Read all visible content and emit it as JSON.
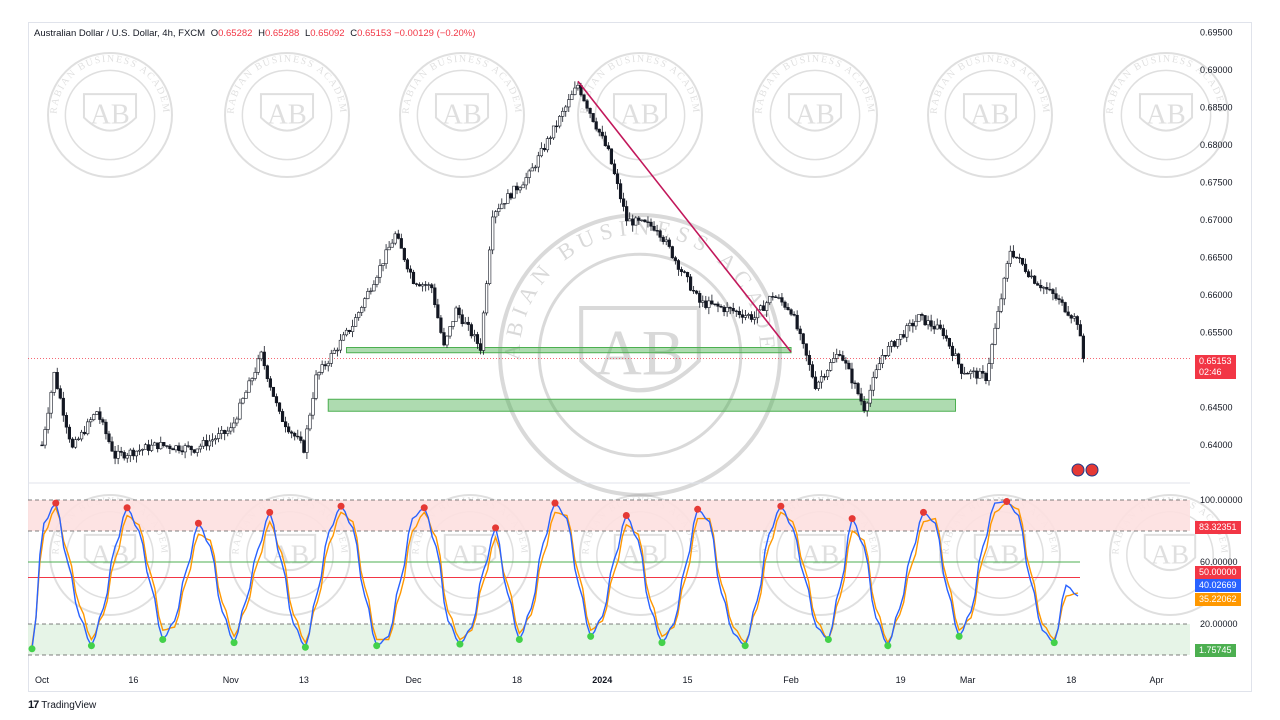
{
  "header": {
    "symbol": "Australian Dollar / U.S. Dollar, 4h, FXCM",
    "open_label": "O",
    "open": "0.65282",
    "high_label": "H",
    "high": "0.65288",
    "low_label": "L",
    "low": "0.65092",
    "close_label": "C",
    "close": "0.65153",
    "change": "−0.00129 (−0.20%)"
  },
  "price_tag": {
    "price": "0.65153",
    "countdown": "02:46",
    "color": "#f23645"
  },
  "osc_tags": [
    {
      "value": "83.32351",
      "color": "#f23645"
    },
    {
      "value": "50.00000",
      "color": "#f23645"
    },
    {
      "value": "40.02669",
      "color": "#2962ff"
    },
    {
      "value": "35.22062",
      "color": "#ff9800"
    },
    {
      "value": "1.75745",
      "color": "#4caf50"
    }
  ],
  "footer": {
    "brand": "TradingView"
  },
  "watermark": {
    "initials": "AB",
    "ring_text": "ARABIAN BUSINESS ACADEMY"
  },
  "colors": {
    "up": "#26a69a",
    "down": "#ef5350",
    "candle": "#131722",
    "trendline": "#c2185b",
    "zone": "#4caf50",
    "k_line": "#2962ff",
    "d_line": "#ff9800"
  },
  "chart_data": [
    {
      "type": "candlestick",
      "title": "Australian Dollar / U.S. Dollar, 4h, FXCM",
      "y_ticks": [
        "0.69500",
        "0.69000",
        "0.68500",
        "0.68000",
        "0.67500",
        "0.67000",
        "0.66500",
        "0.66000",
        "0.65500",
        "0.65000",
        "0.64500",
        "0.64000"
      ],
      "ylim": [
        0.6385,
        0.696
      ],
      "x_ticks": [
        "Oct",
        "16",
        "Nov",
        "13",
        "Dec",
        "18",
        "2024",
        "15",
        "Feb",
        "19",
        "Mar",
        "18",
        "Apr"
      ],
      "last_price": 0.65153,
      "path": [
        [
          "Oct 1",
          0.64
        ],
        [
          "Oct 3",
          0.6495
        ],
        [
          "Oct 6",
          0.6395
        ],
        [
          "Oct 10",
          0.6445
        ],
        [
          "Oct 13",
          0.6385
        ],
        [
          "Oct 20",
          0.64
        ],
        [
          "Oct 26",
          0.6395
        ],
        [
          "Nov 1",
          0.642
        ],
        [
          "Nov 6",
          0.652
        ],
        [
          "Nov 9",
          0.644
        ],
        [
          "Nov 13",
          0.6395
        ],
        [
          "Nov 15",
          0.649
        ],
        [
          "Nov 21",
          0.656
        ],
        [
          "Nov 28",
          0.668
        ],
        [
          "Dec 1",
          0.662
        ],
        [
          "Dec 4",
          0.661
        ],
        [
          "Dec 6",
          0.653
        ],
        [
          "Dec 8",
          0.658
        ],
        [
          "Dec 12",
          0.653
        ],
        [
          "Dec 14",
          0.671
        ],
        [
          "Dec 20",
          0.676
        ],
        [
          "Dec 28",
          0.688
        ],
        [
          "Jan 2",
          0.679
        ],
        [
          "Jan 5",
          0.67
        ],
        [
          "Jan 10",
          0.669
        ],
        [
          "Jan 17",
          0.659
        ],
        [
          "Jan 22",
          0.658
        ],
        [
          "Jan 26",
          0.657
        ],
        [
          "Jan 29",
          0.66
        ],
        [
          "Feb 1",
          0.658
        ],
        [
          "Feb 5",
          0.648
        ],
        [
          "Feb 9",
          0.6525
        ],
        [
          "Feb 13",
          0.645
        ],
        [
          "Feb 16",
          0.652
        ],
        [
          "Feb 22",
          0.657
        ],
        [
          "Feb 26",
          0.655
        ],
        [
          "Feb 29",
          0.65
        ],
        [
          "Mar 4",
          0.649
        ],
        [
          "Mar 8",
          0.666
        ],
        [
          "Mar 12",
          0.662
        ],
        [
          "Mar 15",
          0.66
        ],
        [
          "Mar 19",
          0.6565
        ],
        [
          "Mar 20",
          0.65153
        ]
      ],
      "zones": [
        {
          "from": "Nov 20",
          "to": "Feb 1",
          "low": 0.6523,
          "high": 0.653
        },
        {
          "from": "Nov 17",
          "to": "Feb 28",
          "low": 0.6445,
          "high": 0.6461
        }
      ],
      "trendline": {
        "from": [
          "Dec 28",
          0.6885
        ],
        "to": [
          "Feb 1",
          0.6524
        ]
      }
    },
    {
      "type": "line",
      "y_ticks": [
        "100.00000",
        "80.00000",
        "60.00000",
        "20.00000"
      ],
      "ylim": [
        0,
        100
      ],
      "overbought_band": [
        80,
        100
      ],
      "oversold_band": [
        0,
        20
      ],
      "midline": 50,
      "series": [
        {
          "values": [
            4,
            85,
            98,
            60,
            25,
            6,
            30,
            70,
            95,
            80,
            45,
            10,
            22,
            55,
            85,
            70,
            28,
            8,
            35,
            68,
            92,
            60,
            20,
            5,
            40,
            80,
            96,
            82,
            38,
            6,
            12,
            48,
            88,
            95,
            70,
            22,
            7,
            18,
            55,
            82,
            40,
            10,
            30,
            72,
            98,
            88,
            45,
            12,
            25,
            62,
            90,
            74,
            30,
            8,
            20,
            58,
            94,
            86,
            40,
            14,
            6,
            35,
            78,
            96,
            82,
            50,
            18,
            10,
            44,
            88,
            70,
            24,
            6,
            30,
            66,
            92,
            85,
            42,
            12,
            28,
            70,
            98,
            99,
            90,
            48,
            16,
            8,
            45,
            38
          ]
        },
        {
          "values": [
            6,
            78,
            95,
            66,
            32,
            10,
            26,
            62,
            90,
            84,
            52,
            16,
            18,
            48,
            78,
            74,
            34,
            12,
            30,
            60,
            86,
            66,
            26,
            8,
            34,
            72,
            92,
            86,
            44,
            10,
            10,
            40,
            80,
            92,
            76,
            28,
            10,
            16,
            48,
            76,
            46,
            14,
            26,
            64,
            92,
            90,
            52,
            16,
            22,
            54,
            84,
            78,
            36,
            12,
            18,
            50,
            88,
            88,
            46,
            18,
            8,
            30,
            70,
            92,
            86,
            56,
            22,
            10,
            38,
            80,
            74,
            30,
            8,
            26,
            58,
            86,
            88,
            48,
            16,
            24,
            62,
            92,
            98,
            94,
            54,
            20,
            10,
            38,
            40
          ]
        }
      ]
    }
  ]
}
